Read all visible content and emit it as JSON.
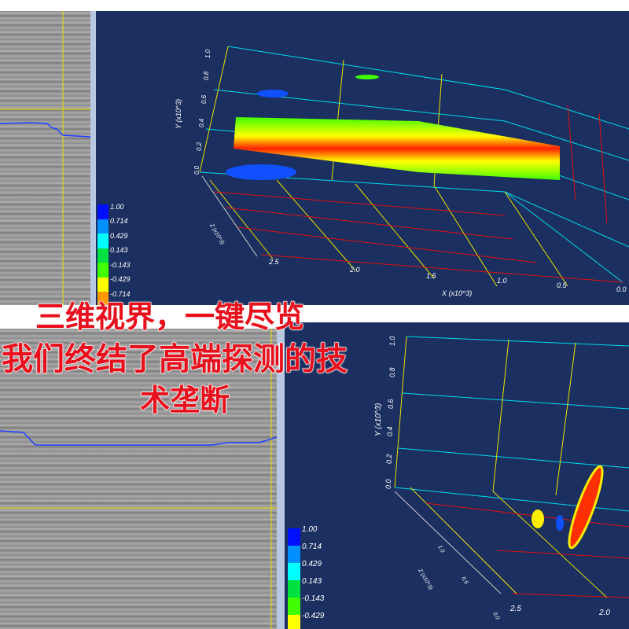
{
  "overlay_text": {
    "line1": "三维视界，一键尽览",
    "line2": "我们终结了高端探测的技",
    "line3": "术垄断"
  },
  "legend": {
    "values": [
      "1.00",
      "0.714",
      "0.429",
      "0.143",
      "-0.143",
      "-0.429",
      "-0.714"
    ],
    "colors": [
      "#0010ff",
      "#0090ff",
      "#00ffff",
      "#00e040",
      "#40ff00",
      "#ffff00",
      "#ff9900",
      "#ff2000"
    ]
  },
  "top_view": {
    "x_axis_label": "X (x10^3)",
    "y_axis_label": "Y (x10^3)",
    "z_axis_label": "Z (x10^3)",
    "x_ticks": [
      "2.5",
      "2.0",
      "1.5",
      "1.0",
      "0.5",
      "0.0"
    ],
    "y_ticks": [
      "0.0",
      "0.2",
      "0.4",
      "0.6",
      "0.8",
      "1.0"
    ]
  },
  "bottom_view": {
    "y_axis_label": "Y (x10^3)",
    "z_axis_label": "Z (x10^3)",
    "x_ticks": [
      "2.5",
      "2.0"
    ],
    "y_ticks": [
      "0.0",
      "0.2",
      "0.4",
      "0.6",
      "0.8",
      "1.0"
    ],
    "z_ticks": [
      "0.0",
      "0.5",
      "1.0"
    ]
  }
}
